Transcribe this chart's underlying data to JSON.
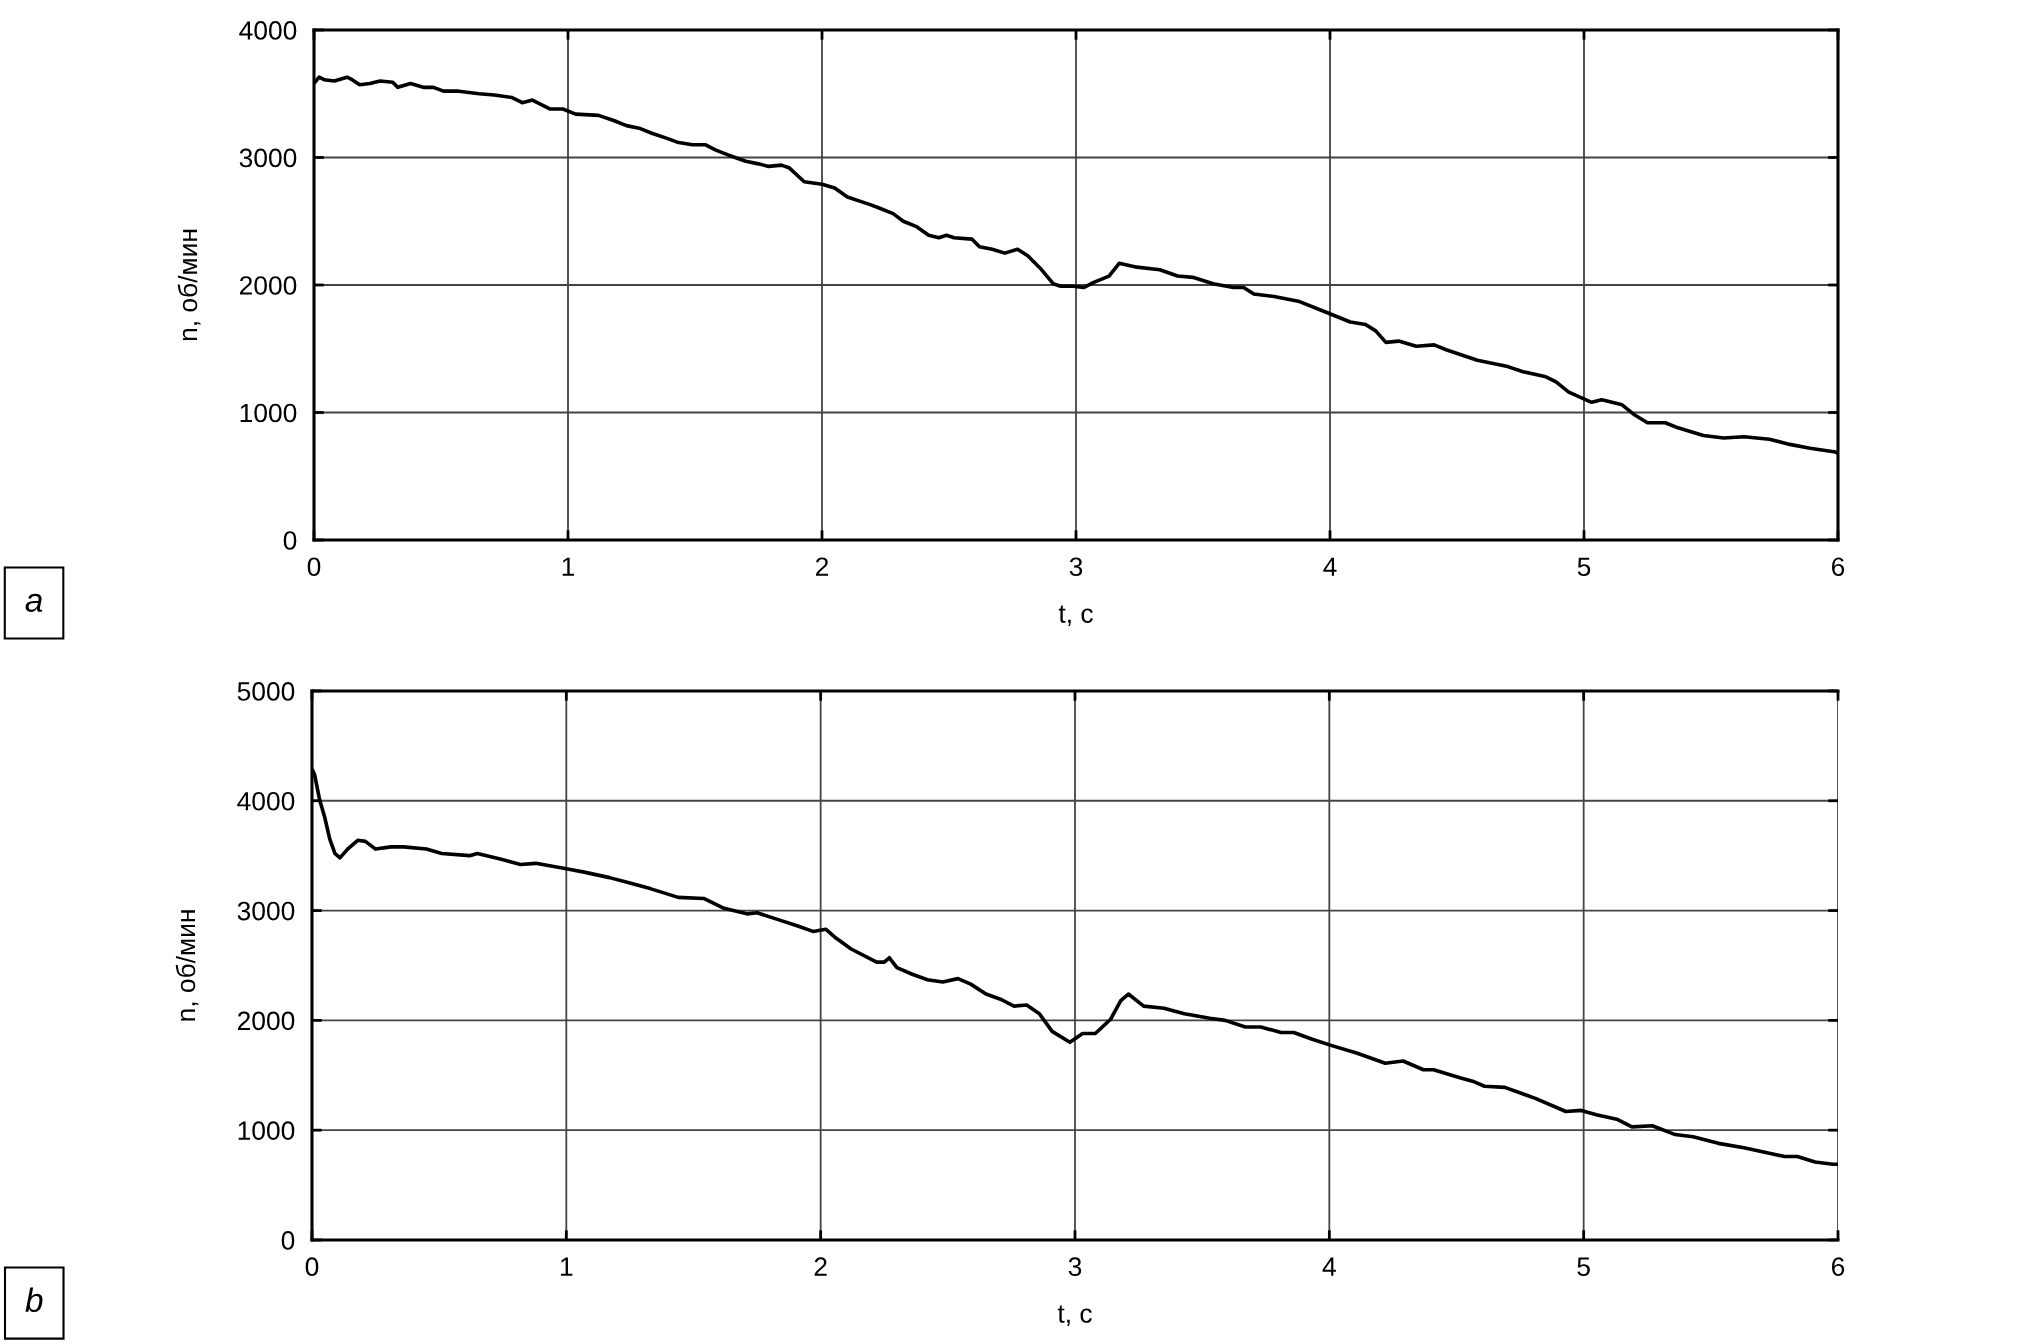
{
  "chart_data": [
    {
      "type": "line",
      "xlabel": "t, с",
      "ylabel": "n, об/мин",
      "annotations": [
        "a"
      ],
      "xlim": [
        0,
        6
      ],
      "ylim": [
        0,
        4000
      ],
      "xticks": [
        0,
        1,
        2,
        3,
        4,
        5,
        6
      ],
      "yticks": [
        0,
        1000,
        2000,
        3000,
        4000
      ],
      "grid": true,
      "x": [
        0,
        0.02,
        0.04,
        0.08,
        0.13,
        0.15,
        0.18,
        0.22,
        0.26,
        0.31,
        0.33,
        0.38,
        0.43,
        0.47,
        0.51,
        0.57,
        0.65,
        0.71,
        0.78,
        0.82,
        0.86,
        0.93,
        0.98,
        1.03,
        1.12,
        1.18,
        1.23,
        1.28,
        1.33,
        1.39,
        1.43,
        1.49,
        1.54,
        1.58,
        1.63,
        1.7,
        1.75,
        1.79,
        1.84,
        1.87,
        1.93,
        2.0,
        2.05,
        2.1,
        2.16,
        2.19,
        2.23,
        2.28,
        2.32,
        2.37,
        2.42,
        2.46,
        2.49,
        2.52,
        2.59,
        2.62,
        2.67,
        2.72,
        2.77,
        2.81,
        2.86,
        2.91,
        2.94,
        2.99,
        3.03,
        3.07,
        3.13,
        3.17,
        3.24,
        3.33,
        3.4,
        3.46,
        3.54,
        3.62,
        3.66,
        3.7,
        3.78,
        3.88,
        3.98,
        4.08,
        4.14,
        4.18,
        4.22,
        4.27,
        4.34,
        4.41,
        4.46,
        4.58,
        4.7,
        4.76,
        4.85,
        4.89,
        4.94,
        5.03,
        5.07,
        5.15,
        5.2,
        5.25,
        5.32,
        5.37,
        5.47,
        5.55,
        5.63,
        5.73,
        5.81,
        5.89,
        5.99,
        6.0
      ],
      "series": [
        {
          "color": "#000000",
          "values": [
            3580,
            3630,
            3610,
            3600,
            3630,
            3610,
            3570,
            3580,
            3600,
            3590,
            3550,
            3580,
            3550,
            3550,
            3520,
            3520,
            3500,
            3490,
            3470,
            3430,
            3450,
            3380,
            3380,
            3340,
            3330,
            3290,
            3250,
            3230,
            3190,
            3150,
            3120,
            3100,
            3100,
            3060,
            3020,
            2970,
            2950,
            2930,
            2940,
            2920,
            2810,
            2790,
            2760,
            2690,
            2650,
            2630,
            2600,
            2560,
            2500,
            2460,
            2390,
            2370,
            2390,
            2370,
            2360,
            2300,
            2280,
            2250,
            2280,
            2230,
            2130,
            2010,
            1990,
            1990,
            1980,
            2020,
            2070,
            2170,
            2140,
            2120,
            2070,
            2060,
            2010,
            1980,
            1980,
            1930,
            1910,
            1870,
            1790,
            1710,
            1690,
            1640,
            1550,
            1560,
            1520,
            1530,
            1490,
            1410,
            1360,
            1320,
            1280,
            1240,
            1160,
            1080,
            1100,
            1060,
            980,
            920,
            920,
            880,
            820,
            800,
            810,
            790,
            750,
            720,
            690,
            680
          ]
        }
      ]
    },
    {
      "type": "line",
      "xlabel": "t, с",
      "ylabel": "n, об/мин",
      "annotations": [
        "b"
      ],
      "xlim": [
        0,
        6
      ],
      "ylim": [
        0,
        5000
      ],
      "xticks": [
        0,
        1,
        2,
        3,
        4,
        5,
        6
      ],
      "yticks": [
        0,
        1000,
        2000,
        3000,
        4000,
        5000
      ],
      "grid": true,
      "x": [
        0,
        0.01,
        0.03,
        0.05,
        0.07,
        0.09,
        0.11,
        0.14,
        0.18,
        0.21,
        0.25,
        0.31,
        0.36,
        0.45,
        0.51,
        0.62,
        0.65,
        0.74,
        0.82,
        0.88,
        1.0,
        1.07,
        1.17,
        1.25,
        1.33,
        1.44,
        1.54,
        1.62,
        1.71,
        1.75,
        1.83,
        1.91,
        1.97,
        2.02,
        2.06,
        2.12,
        2.22,
        2.25,
        2.27,
        2.3,
        2.36,
        2.42,
        2.48,
        2.54,
        2.59,
        2.65,
        2.71,
        2.76,
        2.81,
        2.86,
        2.91,
        2.98,
        3.03,
        3.08,
        3.14,
        3.18,
        3.21,
        3.27,
        3.35,
        3.43,
        3.53,
        3.59,
        3.67,
        3.73,
        3.81,
        3.86,
        3.93,
        4.01,
        4.11,
        4.22,
        4.29,
        4.37,
        4.41,
        4.51,
        4.57,
        4.61,
        4.69,
        4.81,
        4.93,
        4.99,
        5.05,
        5.13,
        5.19,
        5.27,
        5.36,
        5.43,
        5.53,
        5.63,
        5.73,
        5.79,
        5.84,
        5.91,
        5.98,
        6.0
      ],
      "series": [
        {
          "color": "#000000",
          "values": [
            4290,
            4240,
            4010,
            3850,
            3650,
            3520,
            3480,
            3560,
            3640,
            3630,
            3560,
            3580,
            3580,
            3560,
            3520,
            3500,
            3520,
            3470,
            3420,
            3430,
            3380,
            3350,
            3300,
            3250,
            3200,
            3120,
            3110,
            3020,
            2970,
            2980,
            2920,
            2860,
            2810,
            2830,
            2750,
            2650,
            2530,
            2530,
            2570,
            2480,
            2420,
            2370,
            2350,
            2380,
            2330,
            2240,
            2190,
            2130,
            2140,
            2060,
            1900,
            1800,
            1880,
            1880,
            2010,
            2180,
            2240,
            2130,
            2110,
            2060,
            2020,
            2000,
            1940,
            1940,
            1890,
            1890,
            1830,
            1770,
            1700,
            1610,
            1630,
            1550,
            1550,
            1480,
            1440,
            1400,
            1390,
            1290,
            1170,
            1180,
            1140,
            1100,
            1030,
            1040,
            960,
            940,
            880,
            840,
            790,
            760,
            760,
            710,
            690,
            690
          ]
        }
      ]
    }
  ]
}
